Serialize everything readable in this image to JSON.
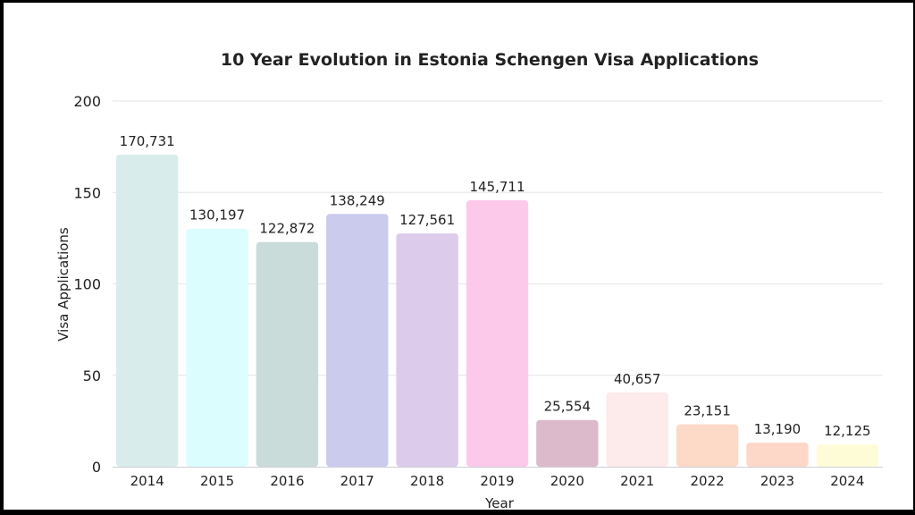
{
  "chart_data": {
    "type": "bar",
    "title": "10 Year Evolution in Estonia Schengen Visa Applications",
    "xlabel": "Year",
    "ylabel": "Visa Applications",
    "ylim": [
      0,
      200
    ],
    "yticks": [
      "0",
      "50",
      "100",
      "150",
      "200"
    ],
    "grid": true,
    "categories": [
      "2014",
      "2015",
      "2016",
      "2017",
      "2018",
      "2019",
      "2020",
      "2021",
      "2022",
      "2023",
      "2024"
    ],
    "values": [
      170.731,
      130.197,
      122.872,
      138.249,
      127.561,
      145.711,
      25.554,
      40.657,
      23.151,
      13.19,
      12.125
    ],
    "data_labels": [
      "170,731",
      "130,197",
      "122,872",
      "138,249",
      "127,561",
      "145,711",
      "25,554",
      "40,657",
      "23,151",
      "13,190",
      "12,125"
    ],
    "colors": [
      "#d9ecec",
      "#dcfdfd",
      "#c9dcda",
      "#cbcbee",
      "#dccbeb",
      "#fdc9eb",
      "#dcbacb",
      "#fdeaeb",
      "#fdd9c7",
      "#fdd8c8",
      "#fefcd6"
    ]
  }
}
